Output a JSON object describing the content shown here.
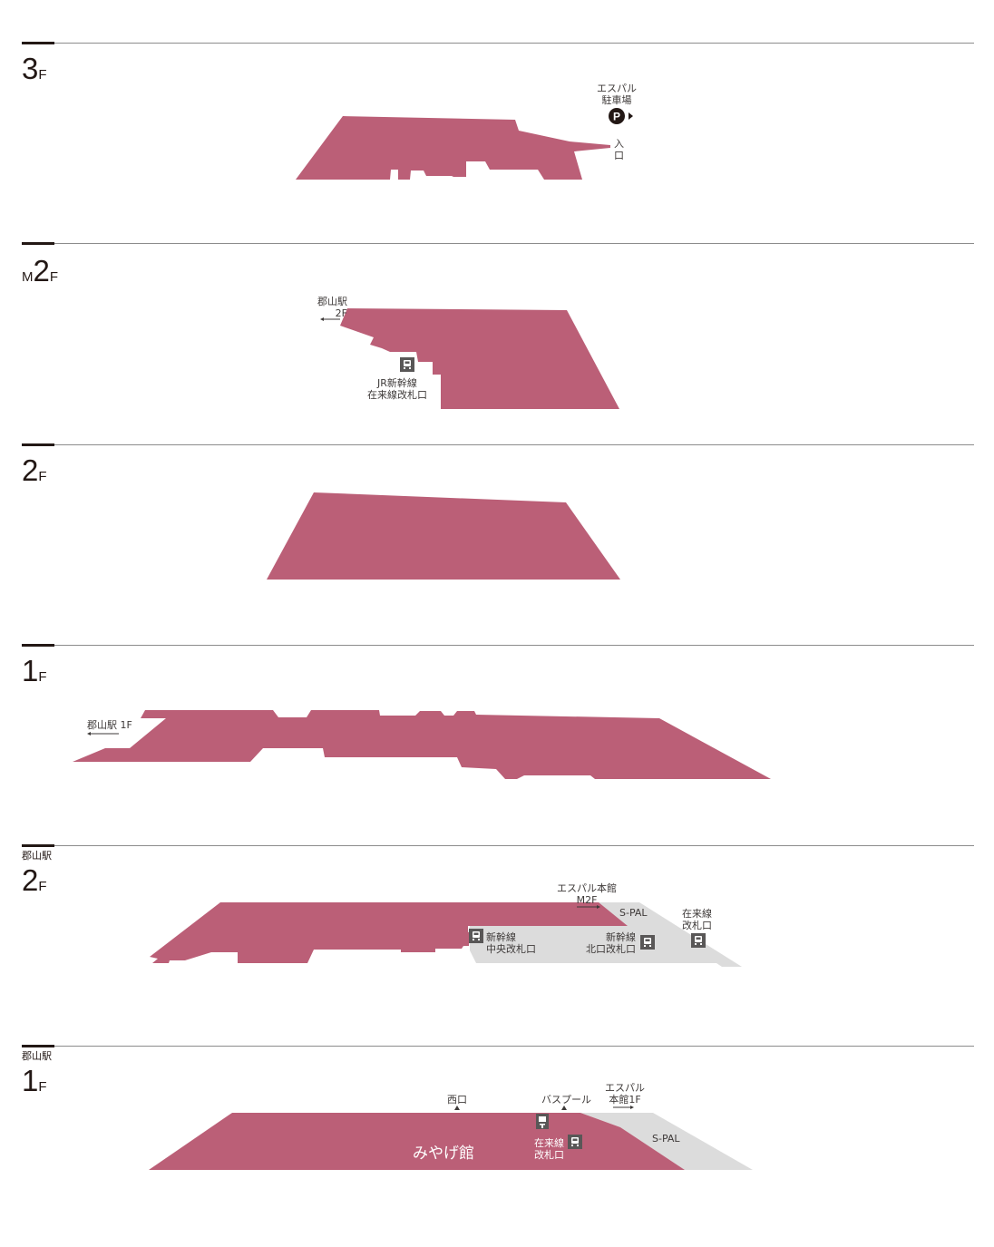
{
  "colors": {
    "shop": "#bb5f77",
    "other": "#dcdcdc",
    "rule": "#8c8c8c",
    "ink": "#231815"
  },
  "floors": [
    {
      "id": "3F",
      "num": "3",
      "suffix": "F",
      "prefix": "",
      "pre_label": "",
      "labels": {
        "parking": "エスパル\n駐車場",
        "entrance": "入\n口"
      }
    },
    {
      "id": "M2F",
      "num": "2",
      "suffix": "F",
      "prefix": "M",
      "pre_label": "",
      "labels": {
        "to_station": "郡山駅\n2F",
        "gate": "JR新幹線\n在来線改札口"
      }
    },
    {
      "id": "2F",
      "num": "2",
      "suffix": "F",
      "prefix": "",
      "pre_label": "",
      "labels": {}
    },
    {
      "id": "1F",
      "num": "1",
      "suffix": "F",
      "prefix": "",
      "pre_label": "",
      "labels": {
        "to_station": "郡山駅 1F"
      }
    },
    {
      "id": "station-2F",
      "num": "2",
      "suffix": "F",
      "prefix": "",
      "pre_label": "郡山駅",
      "labels": {
        "to_main": "エスパル本館\nM2F",
        "spal": "S-PAL",
        "central_gate": "新幹線\n中央改札口",
        "north_gate": "新幹線\n北口改札口",
        "local_gate": "在来線\n改札口"
      }
    },
    {
      "id": "station-1F",
      "num": "1",
      "suffix": "F",
      "prefix": "",
      "pre_label": "郡山駅",
      "labels": {
        "west": "西口",
        "bus": "バスプール",
        "to_main": "エスパル\n本館1F",
        "gate": "在来線\n改札口",
        "spal": "S-PAL",
        "miyage": "みやげ館"
      }
    }
  ]
}
